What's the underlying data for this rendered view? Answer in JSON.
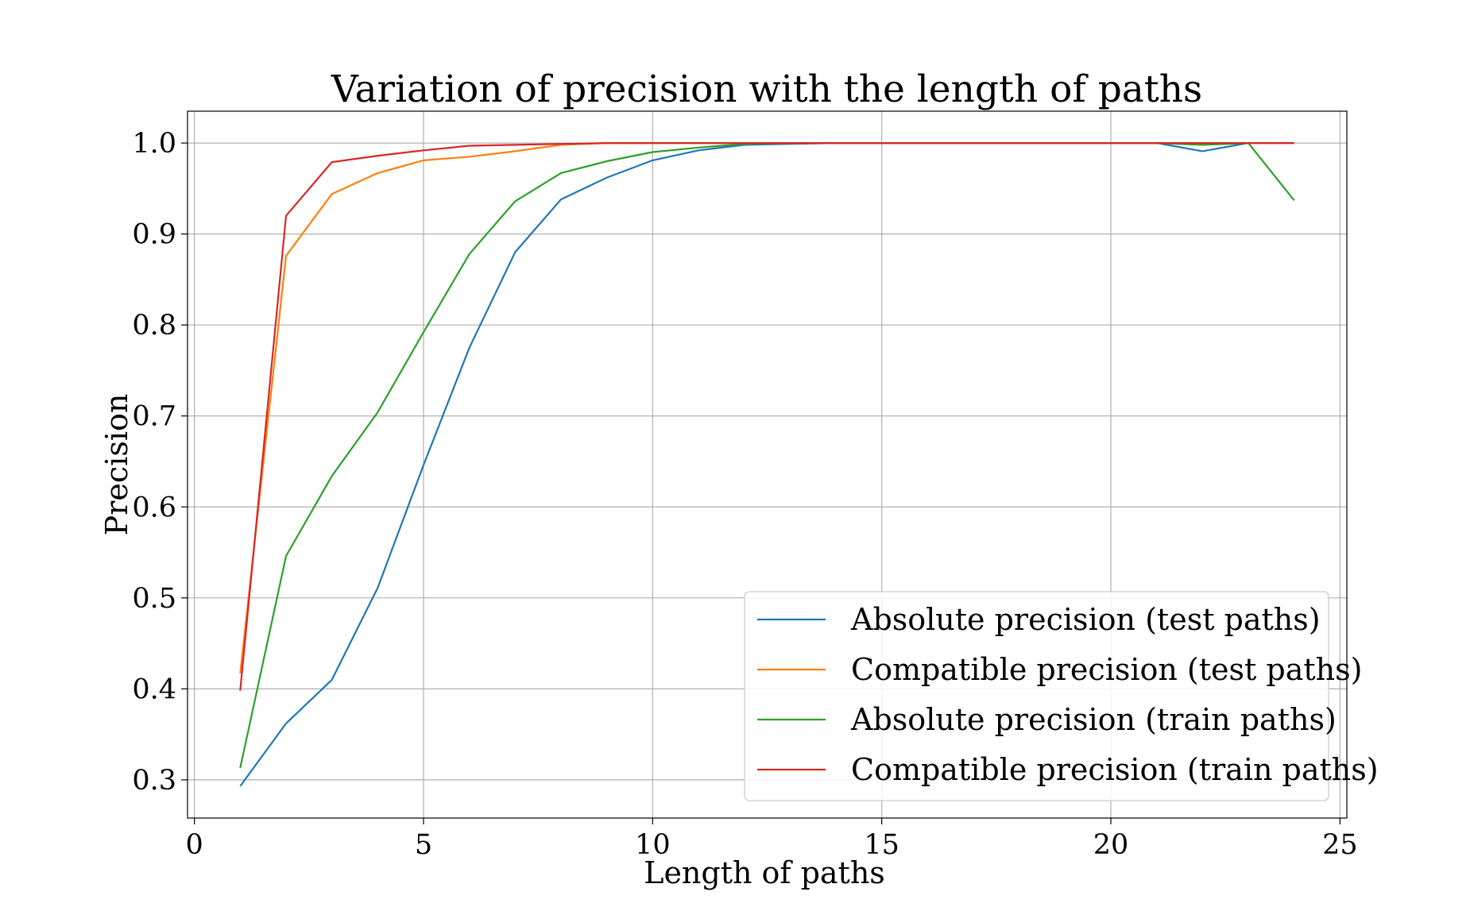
{
  "chart_data": {
    "type": "line",
    "title": "Variation of precision with the length of paths",
    "xlabel": "Length of paths",
    "ylabel": "Precision",
    "xlim": [
      -0.15,
      25.15
    ],
    "ylim": [
      0.258,
      1.035
    ],
    "xticks": [
      0,
      5,
      10,
      15,
      20,
      25
    ],
    "xtick_labels": [
      "0",
      "5",
      "10",
      "15",
      "20",
      "25"
    ],
    "yticks": [
      0.3,
      0.4,
      0.5,
      0.6,
      0.7,
      0.8,
      0.9,
      1.0
    ],
    "ytick_labels": [
      "0.3",
      "0.4",
      "0.5",
      "0.6",
      "0.7",
      "0.8",
      "0.9",
      "1.0"
    ],
    "grid": true,
    "legend_position": "lower-right",
    "x": [
      1,
      2,
      3,
      4,
      5,
      6,
      7,
      8,
      9,
      10,
      11,
      12,
      13,
      14,
      15,
      16,
      17,
      18,
      19,
      20,
      21,
      22,
      23,
      24
    ],
    "series": [
      {
        "name": "Absolute precision (test paths)",
        "color": "#1f77b4",
        "x": [
          1,
          2,
          3,
          4,
          5,
          6,
          7,
          8,
          9,
          10,
          11,
          12,
          13,
          14,
          15,
          16,
          17,
          18,
          19,
          20,
          21,
          22,
          23
        ],
        "values": [
          0.293,
          0.362,
          0.41,
          0.511,
          0.646,
          0.775,
          0.88,
          0.938,
          0.962,
          0.981,
          0.992,
          0.998,
          0.999,
          1.0,
          1.0,
          1.0,
          1.0,
          1.0,
          1.0,
          1.0,
          1.0,
          0.991,
          1.0
        ]
      },
      {
        "name": "Compatible precision (test paths)",
        "color": "#ff7f0e",
        "x": [
          1,
          2,
          3,
          4,
          5,
          6,
          7,
          8,
          9,
          10,
          11,
          12,
          13,
          14,
          15,
          16,
          17,
          18,
          19,
          20,
          21,
          22,
          23,
          24
        ],
        "values": [
          0.417,
          0.876,
          0.944,
          0.967,
          0.981,
          0.985,
          0.991,
          0.998,
          1.0,
          1.0,
          1.0,
          1.0,
          1.0,
          1.0,
          1.0,
          1.0,
          1.0,
          1.0,
          1.0,
          1.0,
          1.0,
          1.0,
          1.0,
          1.0
        ]
      },
      {
        "name": "Absolute precision (train paths)",
        "color": "#2ca02c",
        "x": [
          1,
          2,
          3,
          4,
          5,
          6,
          7,
          8,
          9,
          10,
          11,
          12,
          13,
          14,
          15,
          16,
          17,
          18,
          19,
          20,
          21,
          22,
          23,
          24
        ],
        "values": [
          0.313,
          0.546,
          0.634,
          0.704,
          0.792,
          0.878,
          0.936,
          0.967,
          0.98,
          0.99,
          0.995,
          0.999,
          1.0,
          1.0,
          1.0,
          1.0,
          1.0,
          1.0,
          1.0,
          1.0,
          1.0,
          0.998,
          1.0,
          0.937
        ]
      },
      {
        "name": "Compatible precision (train paths)",
        "color": "#d62728",
        "x": [
          1,
          2,
          3,
          4,
          5,
          6,
          7,
          8,
          9,
          10,
          11,
          12,
          13,
          14,
          15,
          16,
          17,
          18,
          19,
          20,
          21,
          22,
          23,
          24
        ],
        "values": [
          0.398,
          0.92,
          0.979,
          0.986,
          0.992,
          0.997,
          0.998,
          0.999,
          1.0,
          1.0,
          1.0,
          1.0,
          1.0,
          1.0,
          1.0,
          1.0,
          1.0,
          1.0,
          1.0,
          1.0,
          1.0,
          1.0,
          1.0,
          1.0
        ]
      }
    ]
  }
}
